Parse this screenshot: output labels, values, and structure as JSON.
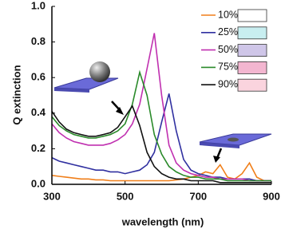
{
  "chart_data": {
    "type": "line",
    "x_label": "wavelength (nm)",
    "y_label": "Q extinction",
    "x": [
      300,
      320,
      340,
      360,
      380,
      400,
      420,
      440,
      460,
      480,
      500,
      520,
      540,
      560,
      580,
      600,
      620,
      640,
      660,
      680,
      700,
      720,
      740,
      760,
      780,
      800,
      820,
      840,
      860,
      880,
      900
    ],
    "xlim": [
      300,
      900
    ],
    "xticks": [
      300,
      500,
      700,
      900
    ],
    "ylim": [
      0,
      1
    ],
    "yticks": [
      {
        "value": 0,
        "label": "0.0"
      },
      0.2,
      0.4,
      0.6,
      0.8,
      {
        "value": 1,
        "label": "1.0"
      }
    ],
    "series": [
      {
        "name": "10%",
        "color": "#f07f1a",
        "box_color": "#ffffff",
        "values": [
          0.05,
          0.045,
          0.04,
          0.035,
          0.03,
          0.03,
          0.025,
          0.025,
          0.02,
          0.02,
          0.02,
          0.02,
          0.02,
          0.02,
          0.02,
          0.02,
          0.02,
          0.025,
          0.03,
          0.04,
          0.05,
          0.07,
          0.06,
          0.11,
          0.04,
          0.03,
          0.06,
          0.12,
          0.04,
          0.02,
          0.02
        ]
      },
      {
        "name": "25%",
        "color": "#3030a0",
        "box_color": "#c8eef0",
        "values": [
          0.15,
          0.13,
          0.12,
          0.11,
          0.1,
          0.09,
          0.08,
          0.08,
          0.07,
          0.07,
          0.06,
          0.07,
          0.08,
          0.11,
          0.18,
          0.35,
          0.51,
          0.3,
          0.14,
          0.08,
          0.06,
          0.05,
          0.04,
          0.04,
          0.03,
          0.03,
          0.03,
          0.03,
          0.02,
          0.02,
          0.02
        ]
      },
      {
        "name": "50%",
        "color": "#c030b0",
        "box_color": "#cfc6e8",
        "values": [
          0.34,
          0.29,
          0.26,
          0.24,
          0.23,
          0.22,
          0.22,
          0.22,
          0.23,
          0.25,
          0.28,
          0.34,
          0.45,
          0.65,
          0.85,
          0.5,
          0.22,
          0.12,
          0.08,
          0.06,
          0.05,
          0.04,
          0.04,
          0.03,
          0.03,
          0.03,
          0.03,
          0.02,
          0.02,
          0.02,
          0.02
        ]
      },
      {
        "name": "75%",
        "color": "#2a8a2a",
        "box_color": "#f3b6d0",
        "values": [
          0.38,
          0.33,
          0.3,
          0.28,
          0.27,
          0.26,
          0.26,
          0.27,
          0.28,
          0.3,
          0.34,
          0.45,
          0.63,
          0.5,
          0.28,
          0.17,
          0.1,
          0.07,
          0.05,
          0.04,
          0.04,
          0.03,
          0.03,
          0.03,
          0.02,
          0.02,
          0.02,
          0.02,
          0.02,
          0.02,
          0.02
        ]
      },
      {
        "name": "90%",
        "color": "#111111",
        "box_color": "#fad4de",
        "values": [
          0.41,
          0.35,
          0.31,
          0.29,
          0.28,
          0.27,
          0.27,
          0.28,
          0.29,
          0.32,
          0.38,
          0.44,
          0.33,
          0.18,
          0.1,
          0.06,
          0.04,
          0.03,
          0.03,
          0.02,
          0.02,
          0.02,
          0.02,
          0.01,
          0.01,
          0.01,
          0.01,
          0.01,
          0.01,
          0.01,
          0.01
        ]
      }
    ]
  }
}
